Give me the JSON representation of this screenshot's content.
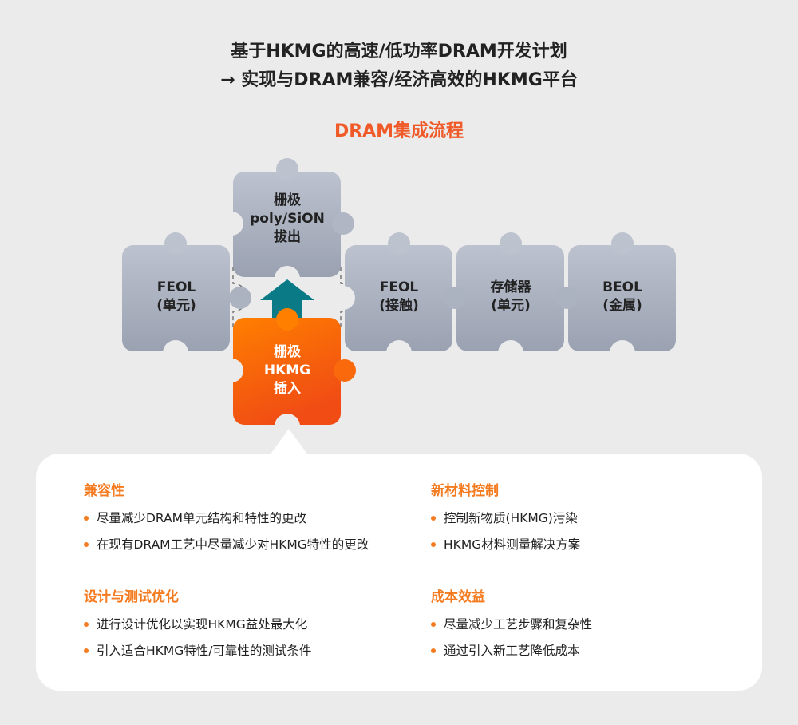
{
  "title": {
    "line1": "基于HKMG的高速/低功率DRAM开发计划",
    "line2": "→ 实现与DRAM兼容/经济高效的HKMG平台"
  },
  "subtitle": "DRAM集成流程",
  "colors": {
    "accent": "#f47b20",
    "subtitle": "#f05a28",
    "arrow": "#0a7a87",
    "piece_gray": "#aab1bf",
    "piece_orange": "#ff6a0a"
  },
  "pieces": [
    {
      "line1": "FEOL",
      "line2": "(单元)"
    },
    {
      "line1": "栅极",
      "line2": "poly/SiON",
      "line3": "拔出"
    },
    {
      "line1": "栅极",
      "line2": "HKMG",
      "line3": "插入"
    },
    {
      "line1": "FEOL",
      "line2": "(接触)"
    },
    {
      "line1": "存储器",
      "line2": "(单元)"
    },
    {
      "line1": "BEOL",
      "line2": "(金属)"
    }
  ],
  "sections": [
    {
      "heading": "兼容性",
      "items": [
        "尽量减少DRAM单元结构和特性的更改",
        "在现有DRAM工艺中尽量减少对HKMG特性的更改"
      ]
    },
    {
      "heading": "新材料控制",
      "items": [
        "控制新物质(HKMG)污染",
        "HKMG材料测量解决方案"
      ]
    },
    {
      "heading": "设计与测试优化",
      "items": [
        "进行设计优化以实现HKMG益处最大化",
        "引入适合HKMG特性/可靠性的测试条件"
      ]
    },
    {
      "heading": "成本效益",
      "items": [
        "尽量减少工艺步骤和复杂性",
        "通过引入新工艺降低成本"
      ]
    }
  ]
}
